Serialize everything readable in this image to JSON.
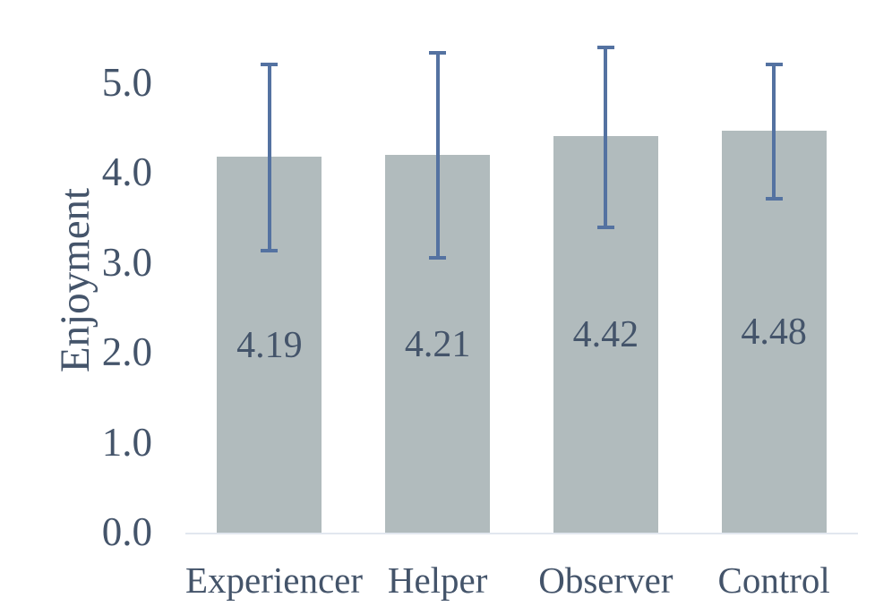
{
  "chart_data": {
    "type": "bar",
    "title": "",
    "xlabel": "",
    "ylabel": "Enjoyment",
    "categories": [
      "Experiencer",
      "Helper",
      "Observer",
      "Control"
    ],
    "values": [
      4.19,
      4.21,
      4.42,
      4.48
    ],
    "bars": [
      {
        "category": "Experiencer",
        "value": 4.19,
        "label": "4.19",
        "whisker_low": 3.15,
        "whisker_high": 5.22
      },
      {
        "category": "Helper",
        "value": 4.21,
        "label": "4.21",
        "whisker_low": 3.07,
        "whisker_high": 5.35
      },
      {
        "category": "Observer",
        "value": 4.42,
        "label": "4.42",
        "whisker_low": 3.41,
        "whisker_high": 5.41
      },
      {
        "category": "Control",
        "value": 4.48,
        "label": "4.48",
        "whisker_low": 3.73,
        "whisker_high": 5.22
      }
    ],
    "ylim": [
      0,
      5.5
    ],
    "yticks": [
      0,
      1,
      2,
      3,
      4,
      5
    ],
    "ytick_labels": [
      "0.0",
      "1.0",
      "2.0",
      "3.0",
      "4.0",
      "5.0"
    ],
    "grid": false,
    "legend": null,
    "colors": {
      "background": "#ffffff",
      "bar_fill": "#b1bbbd",
      "error_bar": "#5472a1",
      "text": "#44546a",
      "axis_line": "#e2e7ef"
    }
  }
}
